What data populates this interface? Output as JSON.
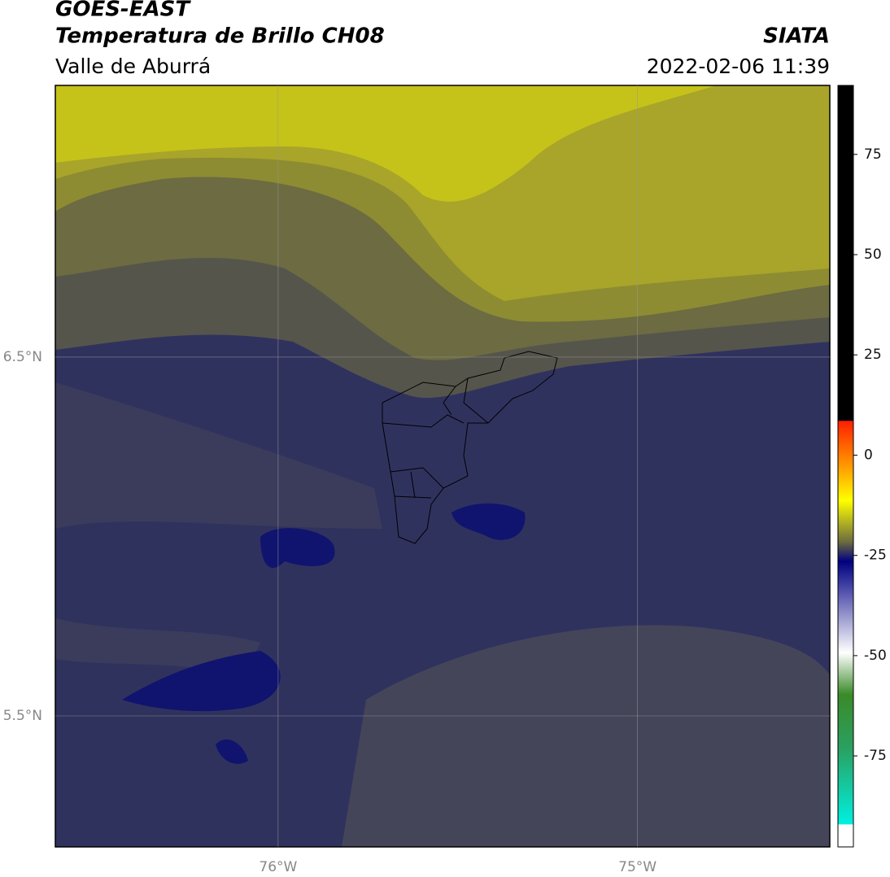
{
  "header": {
    "title": "GOES-EAST",
    "subtitle": "Temperatura de Brillo CH08",
    "region": "Valle de Aburrá",
    "source": "SIATA",
    "datetime": "2022-02-06 11:39"
  },
  "map": {
    "lon_range": [
      -76.62,
      -74.465
    ],
    "lat_range": [
      5.135,
      7.257
    ],
    "lon_ticks": [
      {
        "value": -76,
        "label": "76°W"
      },
      {
        "value": -75,
        "label": "75°W"
      }
    ],
    "lat_ticks": [
      {
        "value": 6.5,
        "label": "6.5°N"
      },
      {
        "value": 5.5,
        "label": "5.5°N"
      }
    ]
  },
  "colorbar": {
    "range": [
      -97.7,
      92.2
    ],
    "ticks": [
      75,
      50,
      25,
      0,
      -25,
      -50,
      -75
    ]
  }
}
